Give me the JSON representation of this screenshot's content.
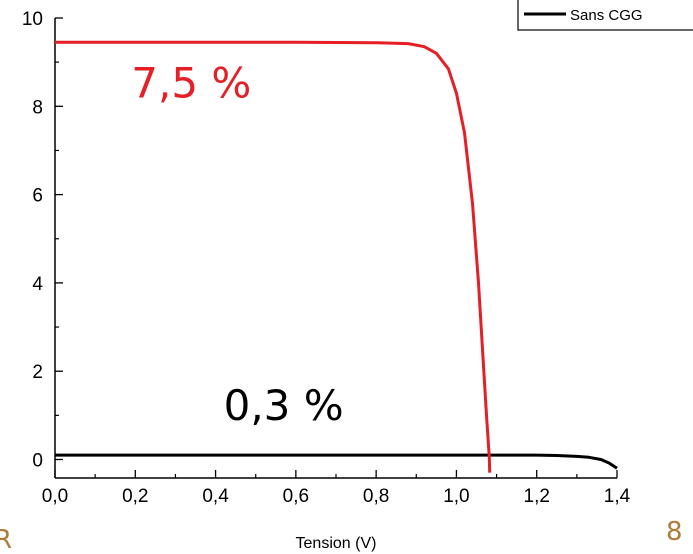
{
  "chart_data": {
    "type": "line",
    "x_ticks": [
      "0,0",
      "0,2",
      "0,4",
      "0,6",
      "0,8",
      "1,0",
      "1,2",
      "1,4"
    ],
    "y_ticks": [
      "0",
      "2",
      "4",
      "6",
      "8",
      "10"
    ],
    "xlabel": "Tension (V)",
    "ylabel": "",
    "xlim": [
      0,
      1.4
    ],
    "ylim": [
      -0.3,
      10.2
    ],
    "legend": {
      "placement": "top-right",
      "entries": [
        "Sans CGG"
      ]
    },
    "series": [
      {
        "name": "Sans CGG",
        "color": "#000000",
        "x": [
          0,
          0.2,
          0.4,
          0.6,
          0.8,
          1.0,
          1.1,
          1.2,
          1.25,
          1.3,
          1.33,
          1.36,
          1.38,
          1.4
        ],
        "y": [
          0.1,
          0.1,
          0.1,
          0.1,
          0.1,
          0.1,
          0.1,
          0.1,
          0.09,
          0.07,
          0.05,
          0.0,
          -0.08,
          -0.2
        ]
      },
      {
        "color": "#e41f26",
        "x": [
          0,
          0.2,
          0.4,
          0.6,
          0.8,
          0.88,
          0.92,
          0.95,
          0.98,
          1.0,
          1.02,
          1.04,
          1.055,
          1.065,
          1.075,
          1.082,
          1.083
        ],
        "y": [
          9.45,
          9.45,
          9.45,
          9.45,
          9.44,
          9.42,
          9.35,
          9.2,
          8.85,
          8.3,
          7.4,
          5.8,
          4.0,
          2.5,
          1.0,
          0.05,
          -0.3
        ]
      }
    ],
    "annotations": [
      {
        "text": "7,5  %",
        "x": 0.19,
        "y": 8.2,
        "color": "#e41f26"
      },
      {
        "text": "0,3  %",
        "x": 0.42,
        "y": 0.9,
        "color": "#000000"
      }
    ],
    "corner_labels": {
      "left": "R",
      "right": "8"
    }
  }
}
